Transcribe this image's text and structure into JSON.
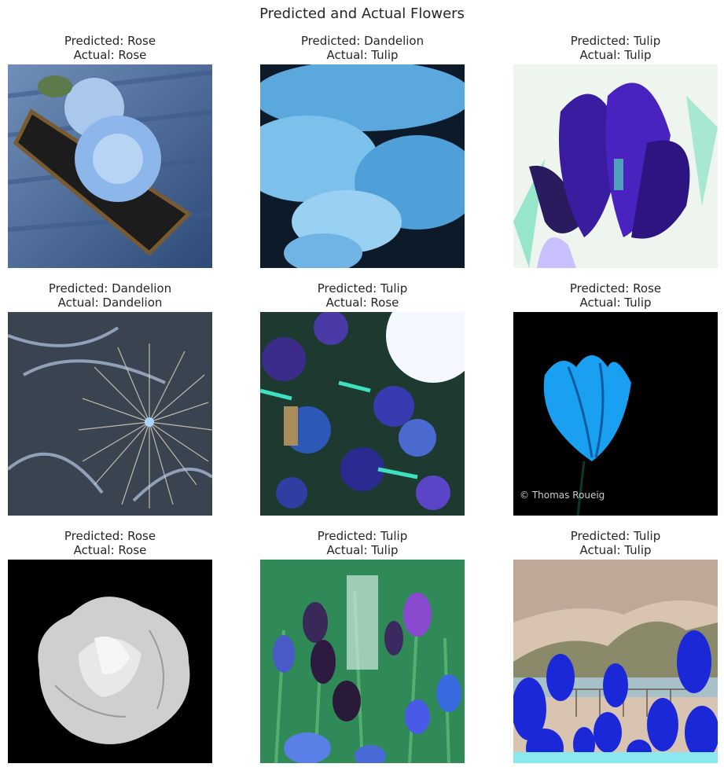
{
  "figure": {
    "title": "Predicted and Actual Flowers"
  },
  "panels": [
    {
      "predicted": "Predicted: Rose",
      "actual": "Actual: Rose"
    },
    {
      "predicted": "Predicted: Dandelion",
      "actual": "Actual: Tulip"
    },
    {
      "predicted": "Predicted: Tulip",
      "actual": "Actual: Tulip"
    },
    {
      "predicted": "Predicted: Dandelion",
      "actual": "Actual: Dandelion"
    },
    {
      "predicted": "Predicted: Tulip",
      "actual": "Actual: Rose"
    },
    {
      "predicted": "Predicted: Rose",
      "actual": "Actual: Tulip"
    },
    {
      "predicted": "Predicted: Rose",
      "actual": "Actual: Rose"
    },
    {
      "predicted": "Predicted: Tulip",
      "actual": "Actual: Tulip"
    },
    {
      "predicted": "Predicted: Tulip",
      "actual": "Actual: Tulip"
    }
  ],
  "watermark": "© Thomas Roueig"
}
